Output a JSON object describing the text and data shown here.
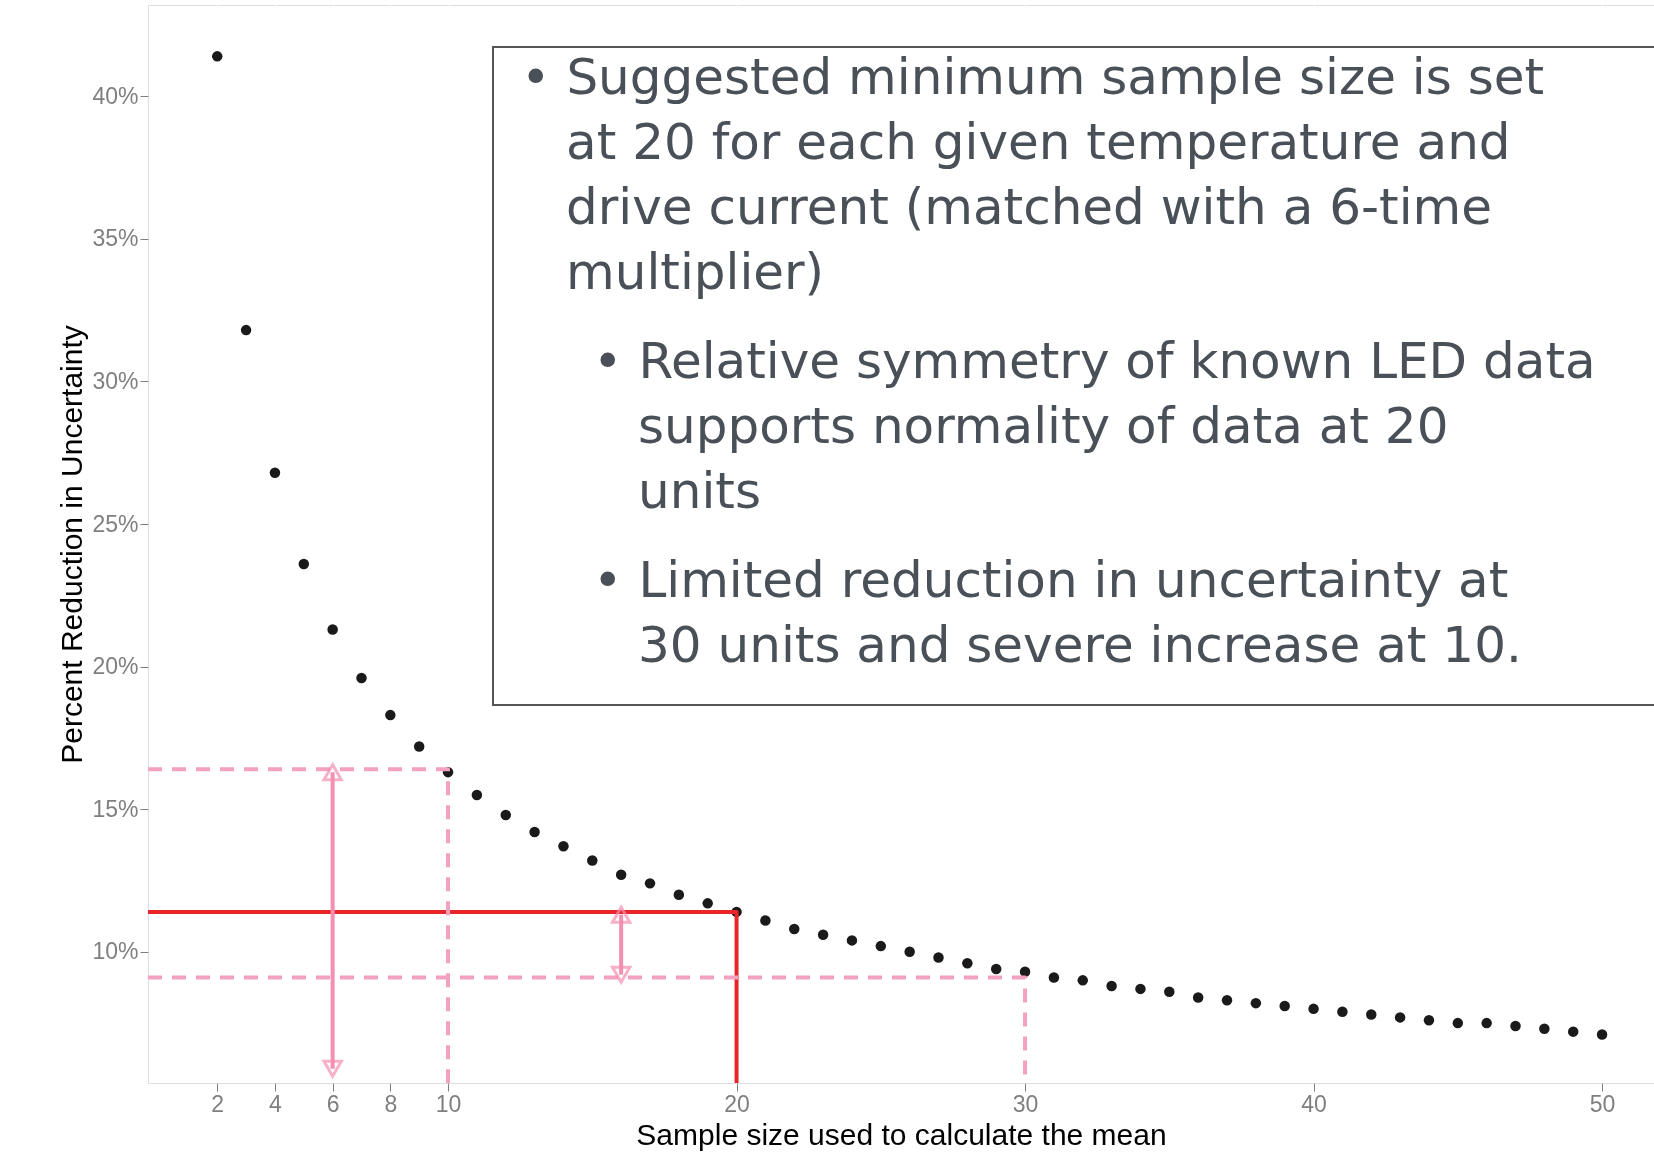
{
  "chart_data": {
    "type": "scatter",
    "xlabel": "Sample size used to calculate the mean",
    "ylabel": "Percent Reduction in Uncertainty",
    "xlim": [
      -0.4,
      51.8
    ],
    "ylim": [
      5.4,
      43.2
    ],
    "xticks": [
      2,
      4,
      6,
      8,
      10,
      20,
      30,
      40,
      50
    ],
    "yticks": [
      {
        "value": 10,
        "label": "10%"
      },
      {
        "value": 15,
        "label": "15%"
      },
      {
        "value": 20,
        "label": "20%"
      },
      {
        "value": 25,
        "label": "25%"
      },
      {
        "value": 30,
        "label": "30%"
      },
      {
        "value": 35,
        "label": "35%"
      },
      {
        "value": 40,
        "label": "40%"
      }
    ],
    "grid": true,
    "series": [
      {
        "marker": "circle",
        "color": "#1a1a1a",
        "x": [
          2,
          3,
          4,
          5,
          6,
          7,
          8,
          9,
          10,
          11,
          12,
          13,
          14,
          15,
          16,
          17,
          18,
          19,
          20,
          21,
          22,
          23,
          24,
          25,
          26,
          27,
          28,
          29,
          30,
          31,
          32,
          33,
          34,
          35,
          36,
          37,
          38,
          39,
          40,
          41,
          42,
          43,
          44,
          45,
          46,
          47,
          48,
          49,
          50
        ],
        "values": [
          41.4,
          31.8,
          26.8,
          23.6,
          21.3,
          19.6,
          18.3,
          17.2,
          16.3,
          15.5,
          14.8,
          14.2,
          13.7,
          13.2,
          12.7,
          12.4,
          12.0,
          11.7,
          11.4,
          11.1,
          10.8,
          10.6,
          10.4,
          10.2,
          10.0,
          9.8,
          9.6,
          9.4,
          9.3,
          9.1,
          9.0,
          8.8,
          8.7,
          8.6,
          8.4,
          8.3,
          8.2,
          8.1,
          8.0,
          7.9,
          7.8,
          7.7,
          7.6,
          7.5,
          7.5,
          7.4,
          7.3,
          7.2,
          7.1
        ]
      },
      {
        "type": "line",
        "marker": "none",
        "line_style": "solid",
        "color": "#e8252b",
        "x": [
          -0.4,
          20,
          20
        ],
        "values": [
          11.4,
          11.4,
          5.4
        ]
      },
      {
        "type": "line",
        "marker": "none",
        "line_style": "dashed",
        "color": "#f4a0c0",
        "x": [
          -0.4,
          10,
          10
        ],
        "values": [
          16.4,
          16.4,
          5.4
        ]
      },
      {
        "type": "line",
        "marker": "none",
        "line_style": "dashed",
        "color": "#f4a0c0",
        "x": [
          -0.4,
          30,
          30
        ],
        "values": [
          9.1,
          9.1,
          5.4
        ]
      },
      {
        "type": "line",
        "marker": "triangle",
        "line_style": "solid",
        "color": "#f48fb1",
        "x": [
          6,
          6
        ],
        "values": [
          16.3,
          5.9
        ]
      },
      {
        "type": "line",
        "marker": "triangle",
        "line_style": "solid",
        "color": "#f48fb1",
        "x": [
          16,
          16
        ],
        "values": [
          11.3,
          9.2
        ]
      }
    ],
    "annotations": [
      "• Suggested minimum sample size is set at 20 for each given temperature and drive current (matched with a 6-time multiplier)",
      "• Relative symmetry of known LED data supports normality of data at 20 units",
      "• Limited reduction in uncertainty at 30 units and severe increase at 10."
    ]
  }
}
